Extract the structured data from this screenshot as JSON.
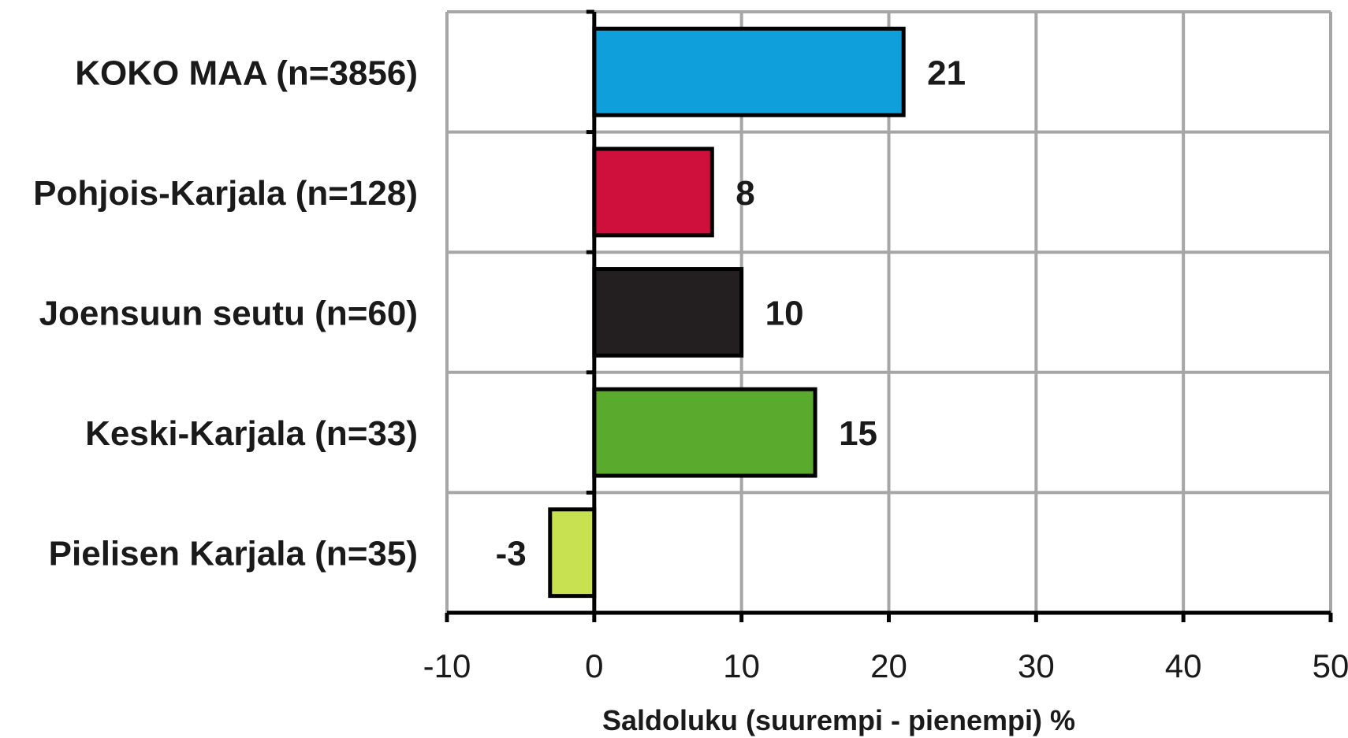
{
  "chart_data": {
    "type": "bar",
    "orientation": "horizontal",
    "categories": [
      "KOKO MAA (n=3856)",
      "Pohjois-Karjala (n=128)",
      "Joensuun seutu (n=60)",
      "Keski-Karjala (n=33)",
      "Pielisen Karjala (n=35)"
    ],
    "values": [
      21,
      8,
      10,
      15,
      -3
    ],
    "value_labels": [
      "21",
      "8",
      "10",
      "15",
      "-3"
    ],
    "colors": [
      "#0fa0dc",
      "#d0103c",
      "#231f20",
      "#5aaa2d",
      "#c8e150"
    ],
    "xlabel": "Saldoluku (suurempi - pienempi) %",
    "xlim": [
      -10,
      50
    ],
    "xticks": [
      -10,
      0,
      10,
      20,
      30,
      40,
      50
    ],
    "xtick_labels": [
      "-10",
      "0",
      "10",
      "20",
      "30",
      "40",
      "50"
    ],
    "grid": true,
    "legend": "none"
  }
}
